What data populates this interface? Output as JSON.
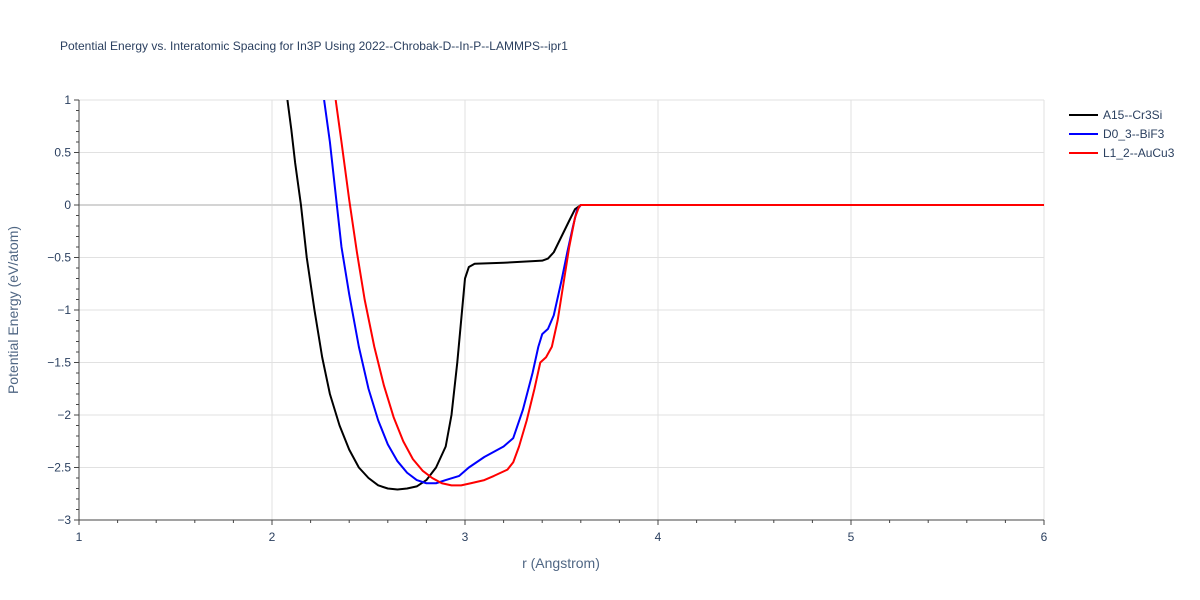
{
  "chart_data": {
    "type": "line",
    "title": "Potential Energy vs. Interatomic Spacing for In3P Using 2022--Chrobak-D--In-P--LAMMPS--ipr1",
    "xlabel": "r (Angstrom)",
    "ylabel": "Potential Energy (eV/atom)",
    "xlim": [
      1,
      6
    ],
    "ylim": [
      -3,
      1
    ],
    "xticks": [
      1,
      2,
      3,
      4,
      5,
      6
    ],
    "xtick_labels": [
      "1",
      "2",
      "3",
      "4",
      "5",
      "6"
    ],
    "yticks": [
      1,
      0.5,
      0,
      -0.5,
      -1,
      -1.5,
      -2,
      -2.5,
      -3
    ],
    "ytick_labels": [
      "1",
      "0.5",
      "0",
      "−0.5",
      "−1",
      "−1.5",
      "−2",
      "−2.5",
      "−3"
    ],
    "grid": true,
    "legend_position": "top-right",
    "series": [
      {
        "name": "A15--Cr3Si",
        "color": "#000000",
        "points": [
          [
            2.08,
            1.0
          ],
          [
            2.1,
            0.72
          ],
          [
            2.12,
            0.4
          ],
          [
            2.15,
            0.0
          ],
          [
            2.18,
            -0.5
          ],
          [
            2.22,
            -1.0
          ],
          [
            2.26,
            -1.45
          ],
          [
            2.3,
            -1.8
          ],
          [
            2.35,
            -2.1
          ],
          [
            2.4,
            -2.33
          ],
          [
            2.45,
            -2.5
          ],
          [
            2.5,
            -2.6
          ],
          [
            2.55,
            -2.67
          ],
          [
            2.6,
            -2.7
          ],
          [
            2.65,
            -2.71
          ],
          [
            2.7,
            -2.7
          ],
          [
            2.75,
            -2.68
          ],
          [
            2.8,
            -2.62
          ],
          [
            2.85,
            -2.5
          ],
          [
            2.9,
            -2.3
          ],
          [
            2.93,
            -2.0
          ],
          [
            2.96,
            -1.5
          ],
          [
            2.98,
            -1.1
          ],
          [
            3.0,
            -0.7
          ],
          [
            3.02,
            -0.59
          ],
          [
            3.05,
            -0.56
          ],
          [
            3.2,
            -0.55
          ],
          [
            3.4,
            -0.53
          ],
          [
            3.43,
            -0.51
          ],
          [
            3.46,
            -0.45
          ],
          [
            3.5,
            -0.3
          ],
          [
            3.54,
            -0.15
          ],
          [
            3.57,
            -0.04
          ],
          [
            3.6,
            0.0
          ],
          [
            4.0,
            0.0
          ],
          [
            5.0,
            0.0
          ],
          [
            6.0,
            0.0
          ]
        ]
      },
      {
        "name": "D0_3--BiF3",
        "color": "#0000ff",
        "points": [
          [
            2.27,
            1.0
          ],
          [
            2.3,
            0.6
          ],
          [
            2.33,
            0.1
          ],
          [
            2.36,
            -0.4
          ],
          [
            2.4,
            -0.85
          ],
          [
            2.45,
            -1.35
          ],
          [
            2.5,
            -1.75
          ],
          [
            2.55,
            -2.05
          ],
          [
            2.6,
            -2.28
          ],
          [
            2.65,
            -2.44
          ],
          [
            2.7,
            -2.55
          ],
          [
            2.75,
            -2.62
          ],
          [
            2.8,
            -2.65
          ],
          [
            2.85,
            -2.65
          ],
          [
            2.9,
            -2.62
          ],
          [
            2.97,
            -2.58
          ],
          [
            3.02,
            -2.5
          ],
          [
            3.1,
            -2.4
          ],
          [
            3.2,
            -2.3
          ],
          [
            3.25,
            -2.22
          ],
          [
            3.3,
            -1.95
          ],
          [
            3.35,
            -1.6
          ],
          [
            3.38,
            -1.35
          ],
          [
            3.4,
            -1.23
          ],
          [
            3.43,
            -1.18
          ],
          [
            3.46,
            -1.05
          ],
          [
            3.5,
            -0.72
          ],
          [
            3.53,
            -0.45
          ],
          [
            3.56,
            -0.2
          ],
          [
            3.58,
            -0.05
          ],
          [
            3.6,
            0.0
          ],
          [
            4.0,
            0.0
          ],
          [
            5.0,
            0.0
          ],
          [
            6.0,
            0.0
          ]
        ]
      },
      {
        "name": "L1_2--AuCu3",
        "color": "#ff0000",
        "points": [
          [
            2.33,
            1.0
          ],
          [
            2.36,
            0.6
          ],
          [
            2.4,
            0.05
          ],
          [
            2.44,
            -0.45
          ],
          [
            2.48,
            -0.9
          ],
          [
            2.53,
            -1.35
          ],
          [
            2.58,
            -1.72
          ],
          [
            2.63,
            -2.02
          ],
          [
            2.68,
            -2.25
          ],
          [
            2.73,
            -2.42
          ],
          [
            2.78,
            -2.53
          ],
          [
            2.83,
            -2.6
          ],
          [
            2.88,
            -2.65
          ],
          [
            2.93,
            -2.67
          ],
          [
            2.98,
            -2.67
          ],
          [
            3.03,
            -2.65
          ],
          [
            3.1,
            -2.62
          ],
          [
            3.15,
            -2.58
          ],
          [
            3.22,
            -2.52
          ],
          [
            3.25,
            -2.45
          ],
          [
            3.28,
            -2.3
          ],
          [
            3.32,
            -2.05
          ],
          [
            3.36,
            -1.75
          ],
          [
            3.39,
            -1.5
          ],
          [
            3.42,
            -1.45
          ],
          [
            3.45,
            -1.35
          ],
          [
            3.48,
            -1.1
          ],
          [
            3.51,
            -0.75
          ],
          [
            3.54,
            -0.4
          ],
          [
            3.57,
            -0.12
          ],
          [
            3.59,
            -0.02
          ],
          [
            3.6,
            0.0
          ],
          [
            4.0,
            0.0
          ],
          [
            5.0,
            0.0
          ],
          [
            6.0,
            0.0
          ]
        ]
      }
    ]
  }
}
